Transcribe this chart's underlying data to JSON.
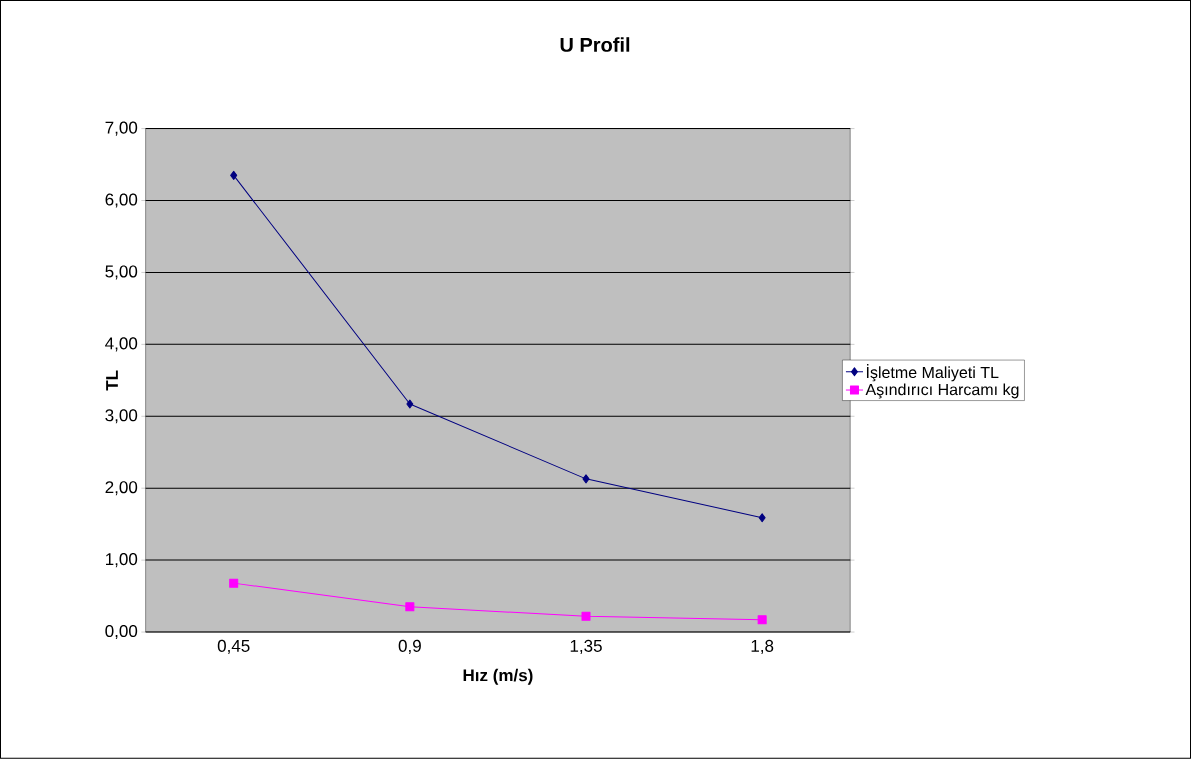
{
  "chart_data": {
    "type": "line",
    "title": "U Profil",
    "xlabel": "Hız (m/s)",
    "ylabel": "TL",
    "categories": [
      "0,45",
      "0,9",
      "1,35",
      "1,8"
    ],
    "series": [
      {
        "name": "İşletme Maliyeti TL",
        "color": "#000080",
        "marker": "diamond",
        "values": [
          6.35,
          3.17,
          2.13,
          1.59
        ]
      },
      {
        "name": "Aşındırıcı Harcamı kg",
        "color": "#ff00ff",
        "marker": "square",
        "values": [
          0.68,
          0.35,
          0.22,
          0.17
        ]
      }
    ],
    "ylim": [
      0,
      7
    ],
    "yticks": [
      {
        "value": 0,
        "label": "0,00"
      },
      {
        "value": 1,
        "label": "1,00"
      },
      {
        "value": 2,
        "label": "2,00"
      },
      {
        "value": 3,
        "label": "3,00"
      },
      {
        "value": 4,
        "label": "4,00"
      },
      {
        "value": 5,
        "label": "5,00"
      },
      {
        "value": 6,
        "label": "6,00"
      },
      {
        "value": 7,
        "label": "7,00"
      }
    ],
    "grid": "y",
    "legend": "right",
    "line_style": "solid"
  }
}
